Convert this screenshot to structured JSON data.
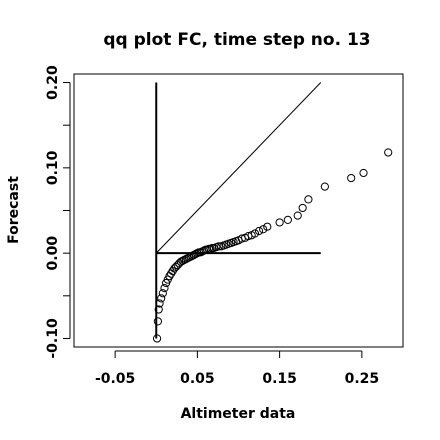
{
  "chart_data": {
    "type": "scatter",
    "title": "qq plot FC, time step no. 13",
    "xlabel": "Altimeter data",
    "ylabel": "Forecast",
    "xlim": [
      -0.1,
      0.3
    ],
    "ylim": [
      -0.11,
      0.21
    ],
    "x_ticks": [
      -0.05,
      0.05,
      0.15,
      0.25
    ],
    "x_tick_labels": [
      "-0.05",
      "0.05",
      "0.15",
      "0.25"
    ],
    "y_ticks": [
      -0.1,
      0.0,
      0.1,
      0.2
    ],
    "y_tick_labels": [
      "-0.10",
      "0.00",
      "0.10",
      "0.20"
    ],
    "y_minor_ticks": [
      -0.05,
      0.05,
      0.15
    ],
    "reference_lines": {
      "identity": {
        "x": [
          0,
          0.2
        ],
        "y": [
          0,
          0.2
        ]
      },
      "vertical": {
        "x": [
          0,
          0
        ],
        "y": [
          -0.1,
          0.2
        ]
      },
      "horizontal": {
        "x": [
          0,
          0.2
        ],
        "y": [
          0,
          0
        ]
      }
    },
    "points": {
      "x": [
        0.001,
        0.002,
        0.003,
        0.004,
        0.006,
        0.008,
        0.01,
        0.012,
        0.014,
        0.016,
        0.018,
        0.02,
        0.022,
        0.024,
        0.026,
        0.028,
        0.03,
        0.032,
        0.034,
        0.036,
        0.038,
        0.04,
        0.042,
        0.044,
        0.046,
        0.048,
        0.05,
        0.052,
        0.054,
        0.056,
        0.058,
        0.06,
        0.062,
        0.064,
        0.066,
        0.068,
        0.07,
        0.073,
        0.076,
        0.079,
        0.082,
        0.085,
        0.088,
        0.091,
        0.094,
        0.097,
        0.1,
        0.104,
        0.108,
        0.112,
        0.116,
        0.12,
        0.125,
        0.13,
        0.135,
        0.15,
        0.16,
        0.172,
        0.178,
        0.185,
        0.205,
        0.237,
        0.252,
        0.282
      ],
      "y": [
        -0.1,
        -0.08,
        -0.066,
        -0.059,
        -0.053,
        -0.047,
        -0.041,
        -0.035,
        -0.031,
        -0.027,
        -0.024,
        -0.021,
        -0.018,
        -0.016,
        -0.014,
        -0.012,
        -0.01,
        -0.009,
        -0.008,
        -0.007,
        -0.006,
        -0.005,
        -0.004,
        -0.003,
        -0.002,
        -0.001,
        0.0,
        0.001,
        0.001,
        0.002,
        0.003,
        0.004,
        0.004,
        0.005,
        0.005,
        0.006,
        0.006,
        0.007,
        0.008,
        0.008,
        0.009,
        0.01,
        0.011,
        0.012,
        0.013,
        0.014,
        0.015,
        0.017,
        0.018,
        0.02,
        0.021,
        0.023,
        0.026,
        0.028,
        0.031,
        0.036,
        0.039,
        0.044,
        0.053,
        0.063,
        0.078,
        0.088,
        0.094,
        0.118
      ]
    }
  }
}
